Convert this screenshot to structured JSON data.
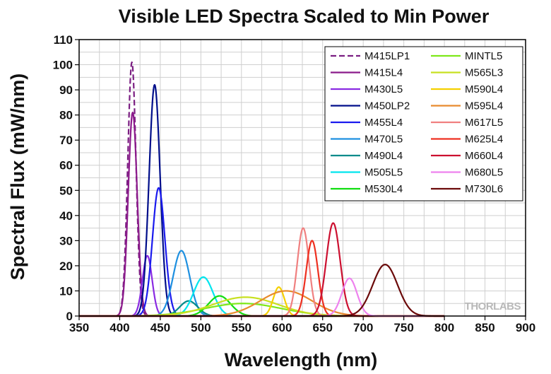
{
  "chart_data": {
    "type": "line",
    "title": "Visible LED Spectra Scaled to Min Power",
    "xlabel": "Wavelength (nm)",
    "ylabel": "Spectral Flux (mW/nm)",
    "xlim": [
      350,
      900
    ],
    "ylim": [
      0,
      110
    ],
    "xticks": [
      350,
      400,
      450,
      500,
      550,
      600,
      650,
      700,
      750,
      800,
      850,
      900
    ],
    "yticks": [
      0,
      10,
      20,
      30,
      40,
      50,
      60,
      70,
      80,
      90,
      100,
      110
    ],
    "grid": true,
    "legend_position": "top-right",
    "watermark": "THORLABS",
    "series": [
      {
        "name": "M415LP1",
        "color": "#7b1f82",
        "dashed": true,
        "peak_x": 415,
        "peak_y": 101,
        "fwhm": 12
      },
      {
        "name": "M415L4",
        "color": "#8b1a8b",
        "dashed": false,
        "peak_x": 416,
        "peak_y": 81,
        "fwhm": 13
      },
      {
        "name": "M430L5",
        "color": "#8a2be2",
        "dashed": false,
        "peak_x": 434,
        "peak_y": 24,
        "fwhm": 14
      },
      {
        "name": "M450LP2",
        "color": "#000e8a",
        "dashed": false,
        "peak_x": 443,
        "peak_y": 92,
        "fwhm": 16
      },
      {
        "name": "M455L4",
        "color": "#1a1aee",
        "dashed": false,
        "peak_x": 448,
        "peak_y": 51,
        "fwhm": 18
      },
      {
        "name": "M470L5",
        "color": "#1e90e0",
        "dashed": false,
        "peak_x": 476,
        "peak_y": 26,
        "fwhm": 24
      },
      {
        "name": "M490L4",
        "color": "#008b8b",
        "dashed": false,
        "peak_x": 485,
        "peak_y": 6,
        "fwhm": 26
      },
      {
        "name": "M505L5",
        "color": "#00e5ee",
        "dashed": false,
        "peak_x": 503,
        "peak_y": 15.5,
        "fwhm": 28
      },
      {
        "name": "M530L4",
        "color": "#11dd11",
        "dashed": false,
        "peak_x": 523,
        "peak_y": 8,
        "fwhm": 32
      },
      {
        "name": "MINTL5",
        "color": "#7ee81a",
        "dashed": false,
        "peak_x": 552,
        "peak_y": 5,
        "fwhm": 110
      },
      {
        "name": "M565L3",
        "color": "#c8e020",
        "dashed": false,
        "peak_x": 555,
        "peak_y": 7.5,
        "fwhm": 95
      },
      {
        "name": "M590L4",
        "color": "#f5d000",
        "dashed": false,
        "peak_x": 596,
        "peak_y": 11.5,
        "fwhm": 16
      },
      {
        "name": "M595L4",
        "color": "#e88a2e",
        "dashed": false,
        "peak_x": 605,
        "peak_y": 10,
        "fwhm": 75
      },
      {
        "name": "M617L5",
        "color": "#f08080",
        "dashed": false,
        "peak_x": 626,
        "peak_y": 35,
        "fwhm": 17
      },
      {
        "name": "M625L4",
        "color": "#ee3020",
        "dashed": false,
        "peak_x": 637,
        "peak_y": 30,
        "fwhm": 17
      },
      {
        "name": "M660L4",
        "color": "#cc1030",
        "dashed": false,
        "peak_x": 663,
        "peak_y": 37,
        "fwhm": 20
      },
      {
        "name": "M680L5",
        "color": "#ee82ee",
        "dashed": false,
        "peak_x": 683,
        "peak_y": 15,
        "fwhm": 22
      },
      {
        "name": "M730L6",
        "color": "#6b0a0a",
        "dashed": false,
        "peak_x": 727,
        "peak_y": 20.5,
        "fwhm": 36
      }
    ]
  }
}
